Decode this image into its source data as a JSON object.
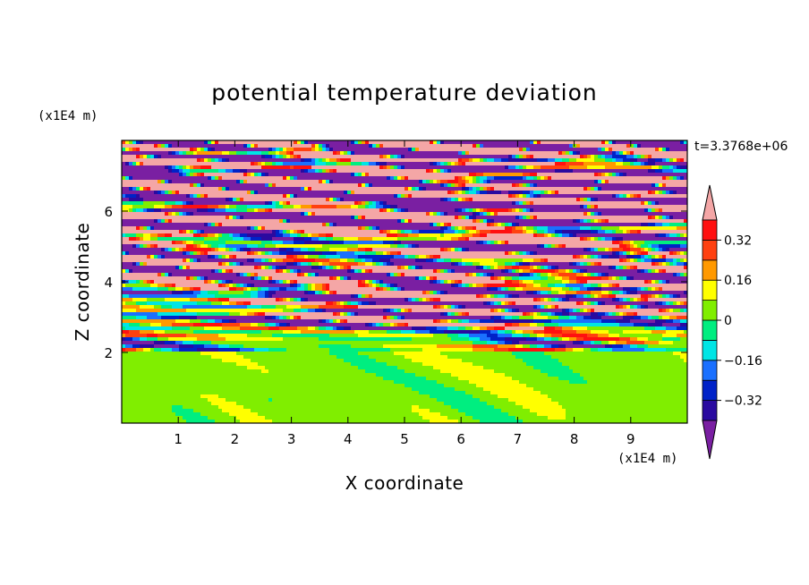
{
  "chart_data": {
    "type": "heatmap",
    "title": "potential temperature deviation",
    "xlabel": "X coordinate",
    "ylabel": "Z coordinate",
    "x_unit": "(x1E4 m)",
    "z_unit": "(x1E4 m)",
    "time_label": "t=3.3768e+06",
    "xlim": [
      0,
      10
    ],
    "zlim": [
      0,
      8
    ],
    "x_ticks": [
      1,
      2,
      3,
      4,
      5,
      6,
      7,
      8,
      9
    ],
    "z_ticks": [
      2,
      4,
      6
    ],
    "colorbar": {
      "levels": [
        -0.4,
        -0.32,
        -0.24,
        -0.16,
        -0.08,
        0,
        0.08,
        0.16,
        0.24,
        0.32,
        0.4
      ],
      "labels": [
        "0.32",
        "0.16",
        "0",
        "−0.16",
        "−0.32"
      ],
      "label_values": [
        0.32,
        0.16,
        0,
        -0.16,
        -0.32
      ],
      "colors": [
        "#7a1fa2",
        "#2a0aa0",
        "#0022c8",
        "#1a70ff",
        "#00e5e5",
        "#00ee80",
        "#80ee00",
        "#ffff00",
        "#ff9900",
        "#ff4010",
        "#ff1010",
        "#f4a6a6"
      ],
      "extend": "both"
    }
  }
}
